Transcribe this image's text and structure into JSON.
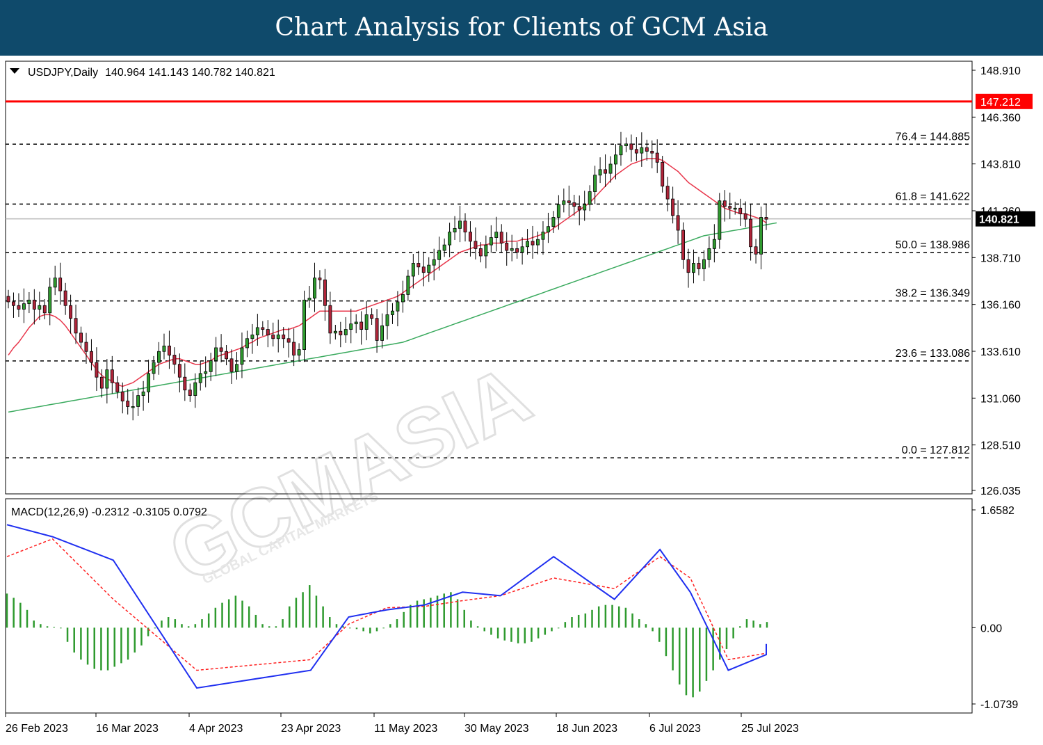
{
  "banner": {
    "title": "Chart Analysis for Clients of GCM Asia"
  },
  "watermark": {
    "brand": "GCMASIA",
    "tagline": "GLOBAL CAPITAL MARKETS"
  },
  "colors": {
    "banner_bg": "#0f4a6b",
    "bull_candle": "#2f9a2f",
    "bear_candle": "#b0253a",
    "ma_fast": "#e8364b",
    "ma_slow": "#3aaa5e",
    "resistance": "#ff0000",
    "macd_line": "#1f2ff0",
    "signal_line": "#ff2020",
    "histogram": "#2e9a2e",
    "price_tag_bg": "#000000"
  },
  "chart_data": [
    {
      "type": "candlestick",
      "header": {
        "symbol": "USDJPY,Daily",
        "ohlc": "140.964 141.143 140.782 140.821"
      },
      "y_ticks": [
        "148.910",
        "146.360",
        "143.810",
        "141.260",
        "138.710",
        "136.160",
        "133.610",
        "131.060",
        "128.510",
        "126.035"
      ],
      "x_ticks": [
        "26 Feb 2023",
        "16 Mar 2023",
        "4 Apr 2023",
        "23 Apr 2023",
        "11 May 2023",
        "30 May 2023",
        "18 Jun 2023",
        "6 Jul 2023",
        "25 Jul 2023"
      ],
      "resistance": {
        "value": 147.212,
        "label": "147.212"
      },
      "current_price": {
        "value": 140.821,
        "label": "140.821"
      },
      "fib_levels": [
        {
          "value": 144.885,
          "label": "76.4 = 144.885"
        },
        {
          "value": 141.622,
          "label": "61.8 = 141.622"
        },
        {
          "value": 138.986,
          "label": "50.0 = 138.986"
        },
        {
          "value": 136.349,
          "label": "38.2 = 136.349"
        },
        {
          "value": 133.086,
          "label": "23.6 = 133.086"
        },
        {
          "value": 127.812,
          "label": "0.0 = 127.812"
        }
      ],
      "closes": [
        136.3,
        136.1,
        135.9,
        136.2,
        136.4,
        135.9,
        136.1,
        135.7,
        137.1,
        137.6,
        136.9,
        136.1,
        135.4,
        134.6,
        134.1,
        133.6,
        133.0,
        132.2,
        131.6,
        132.6,
        131.9,
        131.4,
        130.9,
        130.6,
        130.6,
        131.2,
        131.4,
        132.4,
        133.0,
        133.6,
        133.9,
        133.4,
        132.9,
        132.2,
        131.5,
        131.2,
        131.9,
        132.4,
        132.5,
        133.1,
        133.8,
        133.6,
        133.2,
        132.5,
        132.9,
        133.8,
        134.3,
        134.5,
        134.9,
        134.8,
        134.5,
        134.3,
        134.5,
        134.3,
        134.1,
        133.4,
        133.7,
        136.4,
        136.5,
        137.6,
        137.5,
        136.1,
        134.6,
        134.7,
        134.5,
        134.8,
        135.1,
        135.2,
        134.8,
        135.6,
        135.4,
        134.2,
        135.0,
        135.6,
        135.8,
        136.3,
        136.7,
        137.7,
        138.4,
        138.2,
        137.9,
        138.3,
        138.6,
        139.1,
        139.4,
        140.1,
        140.3,
        140.7,
        140.1,
        139.6,
        139.2,
        138.8,
        139.4,
        139.8,
        140.1,
        139.5,
        139.1,
        139.2,
        139.0,
        139.3,
        139.6,
        139.4,
        139.7,
        140.1,
        140.4,
        140.9,
        141.6,
        141.8,
        141.7,
        141.5,
        141.3,
        141.6,
        142.3,
        143.2,
        143.5,
        143.3,
        143.8,
        144.3,
        144.8,
        144.9,
        144.6,
        144.4,
        144.7,
        144.5,
        144.4,
        143.9,
        142.6,
        141.9,
        141.0,
        140.2,
        138.6,
        137.9,
        138.4,
        138.1,
        138.6,
        139.2,
        139.7,
        141.8,
        141.5,
        141.4,
        141.4,
        141.1,
        140.8,
        139.3,
        138.9,
        140.9,
        140.8
      ],
      "ma_fast": [
        133.4,
        133.8,
        134.1,
        134.5,
        134.9,
        135.2,
        135.5,
        135.6,
        135.6,
        135.5,
        135.3,
        135.0,
        134.6,
        134.2,
        133.8,
        133.4,
        133.0,
        132.6,
        132.3,
        132.1,
        132.0,
        131.8,
        131.7,
        131.8,
        131.9,
        132.1,
        132.3,
        132.5,
        132.7,
        132.9,
        133.0,
        133.1,
        133.2,
        133.2,
        133.1,
        133.0,
        132.9,
        132.9,
        133.0,
        133.1,
        133.3,
        133.4,
        133.5,
        133.6,
        133.7,
        133.8,
        134.0,
        134.1,
        134.3,
        134.4,
        134.5,
        134.6,
        134.7,
        134.8,
        134.8,
        134.9,
        135.0,
        135.2,
        135.4,
        135.6,
        135.8,
        135.8,
        135.8,
        135.8,
        135.8,
        135.8,
        135.8,
        135.8,
        135.9,
        136.0,
        136.1,
        136.2,
        136.3,
        136.4,
        136.5,
        136.6,
        136.8,
        137.0,
        137.2,
        137.4,
        137.6,
        137.8,
        138.0,
        138.2,
        138.4,
        138.6,
        138.8,
        139.0,
        139.1,
        139.2,
        139.3,
        139.4,
        139.4,
        139.5,
        139.5,
        139.5,
        139.6,
        139.6,
        139.6,
        139.7,
        139.7,
        139.8,
        139.9,
        140.0,
        140.1,
        140.3,
        140.5,
        140.7,
        140.9,
        141.1,
        141.3,
        141.5,
        141.7,
        142.0,
        142.3,
        142.6,
        142.9,
        143.2,
        143.4,
        143.6,
        143.8,
        143.9,
        144.0,
        144.1,
        144.1,
        144.1,
        144.0,
        143.8,
        143.6,
        143.4,
        143.1,
        142.8,
        142.6,
        142.4,
        142.2,
        142.0,
        141.8,
        141.6,
        141.4,
        141.3,
        141.2,
        141.1,
        141.1,
        141.0,
        140.9,
        140.8,
        140.6
      ],
      "ma_slow": [
        130.3,
        130.35,
        130.4,
        130.45,
        130.5,
        130.55,
        130.6,
        130.65,
        130.7,
        130.75,
        130.8,
        130.85,
        130.9,
        130.95,
        131.0,
        131.05,
        131.1,
        131.15,
        131.2,
        131.25,
        131.3,
        131.35,
        131.4,
        131.45,
        131.5,
        131.55,
        131.6,
        131.65,
        131.7,
        131.75,
        131.8,
        131.85,
        131.9,
        131.95,
        132.0,
        132.05,
        132.1,
        132.15,
        132.2,
        132.25,
        132.3,
        132.35,
        132.4,
        132.45,
        132.5,
        132.55,
        132.6,
        132.65,
        132.7,
        132.75,
        132.8,
        132.85,
        132.9,
        132.95,
        133.0,
        133.05,
        133.1,
        133.15,
        133.2,
        133.25,
        133.3,
        133.35,
        133.4,
        133.45,
        133.5,
        133.55,
        133.6,
        133.65,
        133.7,
        133.75,
        133.8,
        133.85,
        133.9,
        133.95,
        134.0,
        134.05,
        134.1,
        134.2,
        134.3,
        134.4,
        134.5,
        134.6,
        134.7,
        134.8,
        134.9,
        135.0,
        135.1,
        135.2,
        135.3,
        135.4,
        135.5,
        135.6,
        135.7,
        135.8,
        135.9,
        136.0,
        136.1,
        136.2,
        136.3,
        136.4,
        136.5,
        136.6,
        136.7,
        136.8,
        136.9,
        137.0,
        137.1,
        137.2,
        137.3,
        137.4,
        137.5,
        137.6,
        137.7,
        137.8,
        137.9,
        138.0,
        138.1,
        138.2,
        138.3,
        138.4,
        138.5,
        138.6,
        138.7,
        138.8,
        138.9,
        139.0,
        139.1,
        139.2,
        139.3,
        139.4,
        139.5,
        139.6,
        139.7,
        139.8,
        139.9,
        139.95,
        140.0,
        140.05,
        140.1,
        140.15,
        140.2,
        140.25,
        140.3,
        140.35,
        140.4,
        140.45,
        140.5,
        140.55,
        140.6
      ]
    },
    {
      "type": "macd",
      "header": "MACD(12,26,9) -0.2312 -0.3105 0.0792",
      "y_ticks": [
        "1.6582",
        "0.00",
        "-1.0739"
      ],
      "ylim": [
        -1.0739,
        1.6582
      ],
      "macd": [
        [
          0,
          1.45
        ],
        [
          0.06,
          1.28
        ],
        [
          0.14,
          0.95
        ],
        [
          0.25,
          -0.85
        ],
        [
          0.4,
          -0.6
        ],
        [
          0.45,
          0.15
        ],
        [
          0.5,
          0.25
        ],
        [
          0.55,
          0.32
        ],
        [
          0.6,
          0.5
        ],
        [
          0.65,
          0.45
        ],
        [
          0.72,
          1.0
        ],
        [
          0.8,
          0.4
        ],
        [
          0.86,
          1.1
        ],
        [
          0.9,
          0.5
        ],
        [
          0.95,
          -0.6
        ],
        [
          1.0,
          -0.38
        ],
        [
          1.0,
          -0.23
        ]
      ],
      "signal": [
        [
          0,
          1.0
        ],
        [
          0.06,
          1.25
        ],
        [
          0.14,
          0.4
        ],
        [
          0.25,
          -0.6
        ],
        [
          0.4,
          -0.45
        ],
        [
          0.45,
          0.05
        ],
        [
          0.5,
          0.28
        ],
        [
          0.55,
          0.3
        ],
        [
          0.6,
          0.38
        ],
        [
          0.65,
          0.45
        ],
        [
          0.72,
          0.7
        ],
        [
          0.8,
          0.55
        ],
        [
          0.86,
          1.0
        ],
        [
          0.9,
          0.7
        ],
        [
          0.95,
          -0.45
        ],
        [
          1.0,
          -0.36
        ],
        [
          1.0,
          -0.31
        ]
      ],
      "histogram": [
        0.48,
        0.42,
        0.35,
        0.25,
        0.1,
        0.05,
        0.02,
        0.01,
        0,
        -0.2,
        -0.35,
        -0.45,
        -0.52,
        -0.58,
        -0.6,
        -0.6,
        -0.55,
        -0.5,
        -0.45,
        -0.35,
        -0.25,
        -0.12,
        0,
        0.1,
        0.15,
        0.12,
        0.05,
        0.02,
        0.05,
        0.12,
        0.2,
        0.28,
        0.35,
        0.4,
        0.45,
        0.38,
        0.3,
        0.18,
        0.05,
        0.02,
        0.02,
        0.12,
        0.3,
        0.42,
        0.5,
        0.6,
        0.45,
        0.3,
        0.15,
        0.05,
        0.02,
        0,
        -0.02,
        -0.05,
        -0.08,
        -0.05,
        0,
        0.05,
        0.12,
        0.22,
        0.32,
        0.38,
        0.4,
        0.42,
        0.45,
        0.48,
        0.5,
        0.4,
        0.25,
        0.1,
        0.02,
        -0.05,
        -0.1,
        -0.15,
        -0.18,
        -0.2,
        -0.22,
        -0.22,
        -0.2,
        -0.15,
        -0.1,
        -0.05,
        0,
        0.08,
        0.15,
        0.18,
        0.2,
        0.25,
        0.3,
        0.32,
        0.32,
        0.3,
        0.28,
        0.2,
        0.12,
        0.05,
        -0.05,
        -0.2,
        -0.4,
        -0.6,
        -0.8,
        -0.95,
        -0.98,
        -0.9,
        -0.75,
        -0.6,
        -0.45,
        -0.3,
        -0.15,
        0.02,
        0.12,
        0.1,
        0.05,
        0.08
      ]
    }
  ]
}
